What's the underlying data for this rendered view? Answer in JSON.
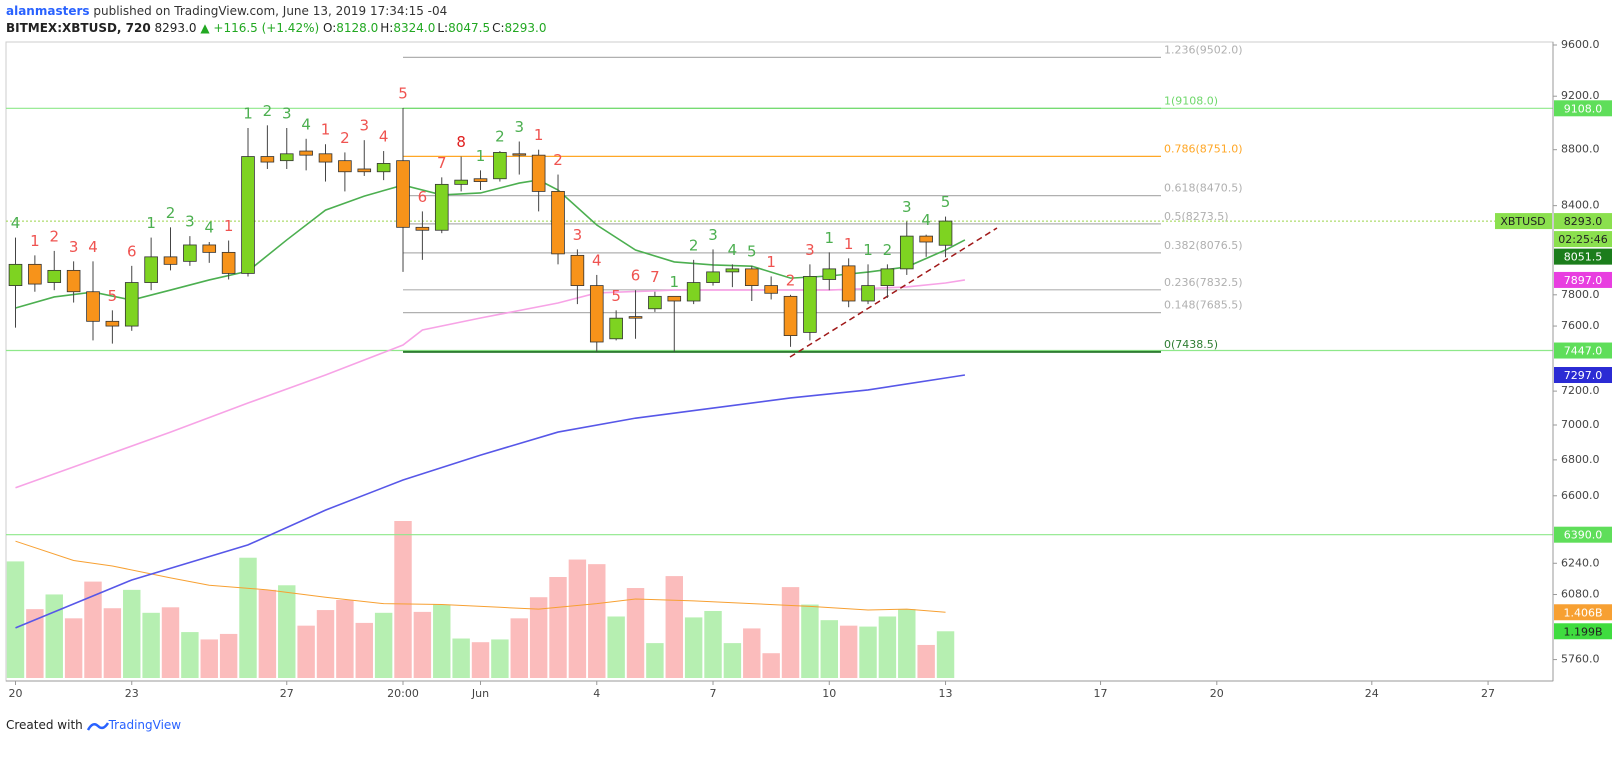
{
  "header": {
    "author": "alanmasters",
    "published": "published on TradingView.com, June 13, 2019 17:34:15 -04",
    "symbol": "BITMEX:XBTUSD, 720",
    "last": "8293.0",
    "change": "▲ +116.5 (+1.42%)",
    "ohlc": [
      {
        "label": "O:",
        "value": "8128.0"
      },
      {
        "label": "H:",
        "value": "8324.0"
      },
      {
        "label": "L:",
        "value": "8047.5"
      },
      {
        "label": "C:",
        "value": "8293.0"
      }
    ]
  },
  "footer": {
    "text": "Created with",
    "brand": "TradingView"
  },
  "chart_data": {
    "type": "candlestick",
    "log_scale": true,
    "ylim": [
      5663,
      9624
    ],
    "yticks": [
      {
        "value": 9600,
        "label": "9600.0"
      },
      {
        "value": 9200,
        "label": "9200.0"
      },
      {
        "value": 8800,
        "label": "8800.0"
      },
      {
        "value": 8400,
        "label": "8400.0"
      },
      {
        "value": 7800,
        "label": "7800.0"
      },
      {
        "value": 7600,
        "label": "7600.0"
      },
      {
        "value": 7200,
        "label": "7200.0"
      },
      {
        "value": 7000,
        "label": "7000.0"
      },
      {
        "value": 6800,
        "label": "6800.0"
      },
      {
        "value": 6600,
        "label": "6600.0"
      },
      {
        "value": 6240,
        "label": "6240.0"
      },
      {
        "value": 6080,
        "label": "6080.0"
      },
      {
        "value": 5760,
        "label": "5760.0"
      }
    ],
    "xlim": [
      -0.49,
      79.3
    ],
    "xticks": [
      {
        "value": 0,
        "label": "20"
      },
      {
        "value": 6,
        "label": "23"
      },
      {
        "value": 14,
        "label": "27"
      },
      {
        "value": 20,
        "label": "20:00"
      },
      {
        "value": 24,
        "label": "Jun"
      },
      {
        "value": 30,
        "label": "4"
      },
      {
        "value": 36,
        "label": "7"
      },
      {
        "value": 42,
        "label": "10"
      },
      {
        "value": 48,
        "label": "13"
      },
      {
        "value": 56,
        "label": "17"
      },
      {
        "value": 62,
        "label": "20"
      },
      {
        "value": 70,
        "label": "24"
      },
      {
        "value": 76,
        "label": "27"
      }
    ],
    "series": [
      {
        "name": "XBTUSD",
        "up_color": "#7ed321",
        "down_color": "#f7931a",
        "open": [
          7860,
          8000,
          7880,
          7960,
          7820,
          7630,
          7600,
          7880,
          8050,
          8020,
          8130,
          8080,
          7940,
          8750,
          8720,
          8790,
          8770,
          8720,
          8660,
          8640,
          8720,
          8250,
          8230,
          8550,
          8590,
          8590,
          8770,
          8760,
          8500,
          8060,
          7860,
          7520,
          7660,
          7710,
          7790,
          7760,
          7880,
          7950,
          7970,
          7860,
          7790,
          7560,
          7900,
          7990,
          7760,
          7860,
          7970,
          8190,
          8128
        ],
        "high": [
          8180,
          8060,
          8090,
          8020,
          8020,
          7700,
          7990,
          8180,
          8250,
          8190,
          8150,
          8160,
          8960,
          8980,
          8960,
          8880,
          8840,
          8780,
          8870,
          8790,
          9110,
          8360,
          8600,
          8750,
          8650,
          8790,
          8860,
          8800,
          8620,
          8100,
          7930,
          7700,
          7830,
          7820,
          7790,
          8030,
          8100,
          8000,
          7990,
          7920,
          7800,
          8000,
          8080,
          8040,
          8000,
          8000,
          8290,
          8200,
          8324
        ],
        "low": [
          7590,
          7820,
          7830,
          7750,
          7510,
          7490,
          7570,
          7830,
          7960,
          7990,
          8010,
          7900,
          7920,
          8660,
          8660,
          8650,
          8570,
          8500,
          8610,
          8580,
          7950,
          8030,
          8210,
          8500,
          8510,
          8570,
          8620,
          8360,
          8000,
          7740,
          7440,
          7510,
          7520,
          7690,
          7440,
          7740,
          7860,
          7850,
          7760,
          7770,
          7470,
          7510,
          7830,
          7720,
          7740,
          7780,
          7930,
          8050,
          8047.5
        ],
        "close": [
          8000,
          7870,
          7960,
          7820,
          7630,
          7600,
          7880,
          8050,
          8000,
          8130,
          8080,
          7940,
          8750,
          8710,
          8770,
          8760,
          8710,
          8640,
          8640,
          8700,
          8250,
          8230,
          8550,
          8580,
          8570,
          8780,
          8760,
          8500,
          8070,
          7860,
          7500,
          7650,
          7650,
          7790,
          7760,
          7880,
          7950,
          7970,
          7860,
          7810,
          7540,
          7920,
          7970,
          7760,
          7860,
          7970,
          8190,
          8150,
          8293
        ]
      }
    ],
    "td_counts": [
      "4",
      "1",
      "2",
      "3",
      "4",
      "5",
      "6",
      "1",
      "2",
      "3",
      "4",
      "1",
      "1",
      "2",
      "3",
      "4",
      "1",
      "2",
      "3",
      "4",
      "5",
      "6",
      "7",
      "8",
      "1",
      "2",
      "3",
      "1",
      "2",
      "3",
      "4",
      "5",
      "6",
      "7",
      "1",
      "2",
      "3",
      "4",
      "5",
      "1",
      "2",
      "3",
      "1",
      "1",
      "1",
      "2",
      "3",
      "4",
      "5"
    ],
    "td_colors": [
      "#4caf50",
      "#ef5350",
      "#ef5350",
      "#ef5350",
      "#ef5350",
      "#ef5350",
      "#ef5350",
      "#4caf50",
      "#4caf50",
      "#4caf50",
      "#4caf50",
      "#ef5350",
      "#4caf50",
      "#4caf50",
      "#4caf50",
      "#4caf50",
      "#ef5350",
      "#ef5350",
      "#ef5350",
      "#ef5350",
      "#ef5350",
      "#ef5350",
      "#ef5350",
      "#e02020",
      "#4caf50",
      "#4caf50",
      "#4caf50",
      "#ef5350",
      "#ef5350",
      "#ef5350",
      "#ef5350",
      "#ef5350",
      "#ef5350",
      "#ef5350",
      "#4caf50",
      "#4caf50",
      "#4caf50",
      "#4caf50",
      "#4caf50",
      "#ef5350",
      "#ef5350",
      "#ef5350",
      "#4caf50",
      "#ef5350",
      "#4caf50",
      "#4caf50",
      "#4caf50",
      "#4caf50",
      "#4caf50"
    ],
    "lines": [
      {
        "color": "#4caf50",
        "x": [
          0,
          2,
          4,
          6,
          8,
          10,
          12,
          14,
          16,
          18,
          20,
          22,
          24,
          26,
          27,
          28,
          30,
          32,
          34,
          36,
          38,
          40,
          42,
          44,
          46,
          48,
          49
        ],
        "values": [
          7715,
          7786,
          7818,
          7766,
          7831,
          7897,
          7955,
          8164,
          8369,
          8467,
          8545,
          8475,
          8489,
          8559,
          8581,
          8510,
          8266,
          8096,
          8016,
          7996,
          7988,
          7909,
          7923,
          7949,
          7983,
          8096,
          8164
        ]
      },
      {
        "color": "#f7a3e6",
        "x": [
          0,
          4,
          8,
          12,
          16,
          20,
          21,
          24,
          28,
          30,
          34,
          38,
          42,
          46,
          48,
          49
        ],
        "values": [
          6644,
          6799,
          6959,
          7129,
          7297,
          7481,
          7575,
          7651,
          7747,
          7812,
          7831,
          7831,
          7831,
          7851,
          7877,
          7897
        ]
      },
      {
        "color": "#5757e8",
        "x": [
          0,
          6,
          12,
          16,
          20,
          24,
          28,
          32,
          36,
          40,
          44,
          48,
          49
        ],
        "values": [
          5914,
          6154,
          6336,
          6522,
          6687,
          6827,
          6959,
          7040,
          7099,
          7159,
          7207,
          7279,
          7297
        ]
      }
    ],
    "fib": [
      {
        "value": 9502,
        "label": "1.236(9502.0)",
        "color": "#b0b0b0"
      },
      {
        "value": 9108,
        "label": "1(9108.0)",
        "color": "#6fd86b"
      },
      {
        "value": 8751,
        "label": "0.786(8751.0)",
        "color": "#ffa726"
      },
      {
        "value": 8470.5,
        "label": "0.618(8470.5)",
        "color": "#b0b0b0"
      },
      {
        "value": 8273.5,
        "label": "0.5(8273.5)",
        "color": "#b0b0b0"
      },
      {
        "value": 8076.5,
        "label": "0.382(8076.5)",
        "color": "#b0b0b0"
      },
      {
        "value": 7832.5,
        "label": "0.236(7832.5)",
        "color": "#b0b0b0"
      },
      {
        "value": 7685.5,
        "label": "0.148(7685.5)",
        "color": "#b0b0b0"
      },
      {
        "value": 7438.5,
        "label": "0(7438.5)",
        "color": "#2e7d32"
      }
    ],
    "hlines": [
      {
        "value": 9108,
        "color": "#8ee88a"
      },
      {
        "value": 7447,
        "color": "#8ee88a"
      },
      {
        "value": 6390,
        "color": "#8ee88a"
      }
    ],
    "price_labels": [
      {
        "value": 9108,
        "label": "9108.0",
        "color": "#5fde5a"
      },
      {
        "value": 8293,
        "label": "8293.0",
        "color": "#8be04e"
      },
      {
        "value": 8051.5,
        "label": "8051.5",
        "color": "#1b7d1b"
      },
      {
        "value": 7897,
        "label": "7897.0",
        "color": "#e83ee0"
      },
      {
        "value": 7447,
        "label": "7447.0",
        "color": "#5fde5a"
      },
      {
        "value": 7297,
        "label": "7297.0",
        "color": "#2b2bd4"
      },
      {
        "value": 6390,
        "label": "6390.0",
        "color": "#5fde5a"
      }
    ],
    "countdown": "02:25:46",
    "volume": {
      "ylim": [
        0.69,
        2.4
      ],
      "up_color": "#b6efb1",
      "down_color": "#fbbcbc",
      "values": [
        1.96,
        1.44,
        1.6,
        1.34,
        1.74,
        1.45,
        1.65,
        1.4,
        1.46,
        1.19,
        1.11,
        1.17,
        2.0,
        1.65,
        1.7,
        1.26,
        1.43,
        1.54,
        1.29,
        1.4,
        2.4,
        1.41,
        1.49,
        1.12,
        1.08,
        1.11,
        1.34,
        1.57,
        1.79,
        1.98,
        1.93,
        1.36,
        1.67,
        1.07,
        1.8,
        1.35,
        1.42,
        1.07,
        1.23,
        0.96,
        1.68,
        1.49,
        1.32,
        1.26,
        1.25,
        1.36,
        1.44,
        1.05,
        1.199
      ],
      "ma": {
        "color": "#f7a032",
        "x": [
          0,
          3,
          5,
          8,
          10,
          13,
          16,
          19,
          22,
          25,
          27,
          30,
          32,
          35,
          38,
          41,
          44,
          46,
          48
        ],
        "values": [
          2.18,
          1.97,
          1.91,
          1.78,
          1.7,
          1.65,
          1.57,
          1.5,
          1.49,
          1.46,
          1.44,
          1.5,
          1.55,
          1.53,
          1.5,
          1.47,
          1.43,
          1.44,
          1.406
        ]
      },
      "labels": [
        {
          "value": 1.406,
          "label": "1.406B",
          "color": "#f7a032"
        },
        {
          "value": 1.199,
          "label": "1.199B",
          "color": "#3fdc3f"
        }
      ]
    }
  }
}
